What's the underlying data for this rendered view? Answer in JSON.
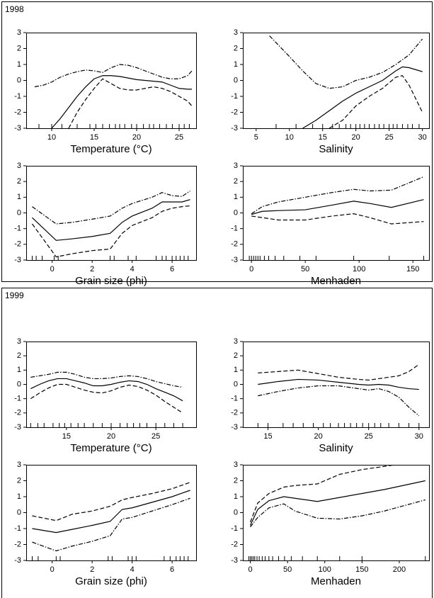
{
  "groups": [
    {
      "title": "1998"
    },
    {
      "title": "1999"
    }
  ],
  "chart_data": [
    {
      "type": "line",
      "xlabel": "Temperature (°C)",
      "xlim": [
        7,
        27
      ],
      "xticks": [
        10,
        15,
        20,
        25
      ],
      "ylim": [
        -3,
        3
      ],
      "yticks": [
        -3,
        -2,
        -1,
        0,
        1,
        2,
        3
      ],
      "x": [
        8,
        9,
        10,
        11,
        12,
        13,
        14,
        15,
        16,
        17,
        18,
        19,
        20,
        21,
        22,
        23,
        24,
        25,
        26,
        26.5
      ],
      "series": [
        {
          "color": "#000000",
          "dash": "solid",
          "values": [
            null,
            null,
            -3,
            -2.4,
            -1.7,
            -1,
            -0.4,
            0.1,
            0.3,
            0.3,
            0.25,
            0.15,
            0.05,
            0,
            -0.05,
            -0.1,
            -0.3,
            -0.5,
            -0.55,
            -0.55
          ]
        },
        {
          "color": "#000000",
          "dash": "dashdot",
          "values": [
            -0.4,
            -0.3,
            -0.1,
            0.2,
            0.4,
            0.55,
            0.65,
            0.6,
            0.5,
            0.8,
            1.0,
            0.95,
            0.8,
            0.6,
            0.4,
            0.2,
            0.1,
            0.1,
            0.3,
            0.6
          ]
        },
        {
          "color": "#000000",
          "dash": "dashed",
          "values": [
            null,
            null,
            null,
            null,
            -3,
            -2,
            -1.2,
            -0.5,
            0.1,
            -0.2,
            -0.5,
            -0.6,
            -0.6,
            -0.5,
            -0.4,
            -0.5,
            -0.7,
            -1.0,
            -1.3,
            -1.6
          ]
        }
      ],
      "rug": [
        8.5,
        10,
        11.2,
        13,
        14.5,
        15.2,
        16,
        16.8,
        17.5,
        18,
        18.6,
        19.4,
        20,
        20.8,
        21.5,
        22,
        22.7,
        23.5,
        24.2,
        25,
        25.6,
        26.2
      ]
    },
    {
      "type": "line",
      "xlabel": "Salinity",
      "xlim": [
        3,
        31
      ],
      "xticks": [
        5,
        10,
        15,
        20,
        25,
        30
      ],
      "ylim": [
        -3,
        3
      ],
      "yticks": [
        -3,
        -2,
        -1,
        0,
        1,
        2,
        3
      ],
      "x": [
        7,
        10,
        12,
        14,
        16,
        18,
        20,
        22,
        24,
        26,
        27,
        28,
        30
      ],
      "series": [
        {
          "color": "#000000",
          "dash": "solid",
          "values": [
            null,
            null,
            -3,
            -2.5,
            -1.9,
            -1.3,
            -0.8,
            -0.4,
            0,
            0.6,
            0.85,
            0.8,
            0.55
          ]
        },
        {
          "color": "#000000",
          "dash": "dashdot",
          "values": [
            2.8,
            1.5,
            0.6,
            -0.2,
            -0.5,
            -0.4,
            0,
            0.2,
            0.5,
            1.0,
            1.3,
            1.6,
            2.6
          ]
        },
        {
          "color": "#000000",
          "dash": "dashed",
          "values": [
            null,
            null,
            null,
            null,
            -3,
            -2.5,
            -1.6,
            -1,
            -0.5,
            0.2,
            0.3,
            -0.3,
            -2
          ]
        }
      ],
      "rug": [
        8,
        11,
        13.5,
        15,
        16.5,
        17.5,
        18.5,
        19.2,
        20,
        20.6,
        21.3,
        22,
        22.8,
        23.5,
        24.2,
        25,
        25.6,
        26.2,
        27,
        27.8,
        28.5,
        29.5
      ]
    },
    {
      "type": "line",
      "xlabel": "Grain size (phi)",
      "xlim": [
        -1.3,
        7.2
      ],
      "xticks": [
        0,
        2,
        4,
        6
      ],
      "ylim": [
        -3,
        3
      ],
      "yticks": [
        -3,
        -2,
        -1,
        0,
        1,
        2,
        3
      ],
      "x": [
        -1,
        0.2,
        1,
        2,
        2.9,
        3.5,
        4,
        5,
        5.5,
        6,
        6.5,
        6.9
      ],
      "series": [
        {
          "color": "#000000",
          "dash": "solid",
          "values": [
            -0.3,
            -1.75,
            -1.65,
            -1.5,
            -1.3,
            -0.6,
            -0.2,
            0.3,
            0.7,
            0.7,
            0.7,
            0.85
          ]
        },
        {
          "color": "#000000",
          "dash": "dashdot",
          "values": [
            0.4,
            -0.7,
            -0.6,
            -0.4,
            -0.2,
            0.3,
            0.6,
            1.0,
            1.3,
            1.1,
            1.05,
            1.4
          ]
        },
        {
          "color": "#000000",
          "dash": "dashed",
          "values": [
            -0.7,
            -2.8,
            -2.6,
            -2.4,
            -2.3,
            -1.3,
            -0.8,
            -0.3,
            0.1,
            0.3,
            0.4,
            0.45
          ]
        }
      ],
      "rug": [
        -1,
        -0.8,
        -0.5,
        0.1,
        0.3,
        2.9,
        3.1,
        3.8,
        4.2,
        5.2,
        5.5,
        5.7,
        6.0,
        6.2,
        6.4,
        6.6,
        6.8
      ]
    },
    {
      "type": "line",
      "xlabel": "Menhaden",
      "xlim": [
        -8,
        165
      ],
      "xticks": [
        0,
        50,
        100,
        150
      ],
      "ylim": [
        -3,
        3
      ],
      "yticks": [
        -3,
        -2,
        -1,
        0,
        1,
        2,
        3
      ],
      "x": [
        0,
        10,
        25,
        50,
        75,
        95,
        110,
        130,
        160
      ],
      "series": [
        {
          "color": "#000000",
          "dash": "solid",
          "values": [
            -0.1,
            0.1,
            0.15,
            0.2,
            0.5,
            0.75,
            0.6,
            0.35,
            0.85
          ]
        },
        {
          "color": "#000000",
          "dash": "dashdot",
          "values": [
            -0.05,
            0.4,
            0.7,
            1.0,
            1.3,
            1.5,
            1.4,
            1.45,
            2.3
          ]
        },
        {
          "color": "#000000",
          "dash": "dashed",
          "values": [
            -0.2,
            -0.3,
            -0.45,
            -0.45,
            -0.2,
            -0.05,
            -0.3,
            -0.7,
            -0.55
          ]
        }
      ],
      "rug": [
        -2,
        0,
        2,
        4,
        6,
        8,
        12,
        16,
        22,
        30,
        45,
        60,
        95,
        128,
        160
      ]
    },
    {
      "type": "line",
      "xlabel": "Temperature (°C)",
      "xlim": [
        10.5,
        29.5
      ],
      "xticks": [
        15,
        20,
        25
      ],
      "ylim": [
        -3,
        3
      ],
      "yticks": [
        -3,
        -2,
        -1,
        0,
        1,
        2,
        3
      ],
      "x": [
        11,
        12,
        13,
        14,
        15,
        16,
        17,
        18,
        19,
        20,
        21,
        22,
        23,
        24,
        25,
        26,
        27,
        28
      ],
      "series": [
        {
          "color": "#000000",
          "dash": "solid",
          "values": [
            -0.3,
            0,
            0.25,
            0.4,
            0.4,
            0.25,
            0.1,
            -0.1,
            -0.1,
            0,
            0.15,
            0.25,
            0.2,
            0,
            -0.3,
            -0.55,
            -0.8,
            -1.15
          ]
        },
        {
          "color": "#000000",
          "dash": "dashdot",
          "values": [
            0.5,
            0.6,
            0.7,
            0.85,
            0.85,
            0.7,
            0.5,
            0.4,
            0.4,
            0.45,
            0.55,
            0.6,
            0.55,
            0.4,
            0.2,
            0.05,
            -0.1,
            -0.2
          ]
        },
        {
          "color": "#000000",
          "dash": "dashed",
          "values": [
            -1,
            -0.6,
            -0.25,
            0,
            0,
            -0.2,
            -0.4,
            -0.55,
            -0.6,
            -0.45,
            -0.2,
            -0.05,
            -0.15,
            -0.4,
            -0.75,
            -1.2,
            -1.6,
            -2
          ]
        }
      ],
      "rug": [
        11,
        11.8,
        12.5,
        13.5,
        14.2,
        14.8,
        15.5,
        16.3,
        17,
        18,
        19,
        20,
        21,
        21.8,
        22.5,
        23.2,
        24,
        25,
        26,
        27,
        28
      ]
    },
    {
      "type": "line",
      "xlabel": "Salinity",
      "xlim": [
        12.5,
        31
      ],
      "xticks": [
        15,
        20,
        25,
        30
      ],
      "ylim": [
        -3,
        3
      ],
      "yticks": [
        -3,
        -2,
        -1,
        0,
        1,
        2,
        3
      ],
      "x": [
        14,
        16,
        18,
        20,
        22,
        24,
        25,
        26,
        27,
        28,
        29,
        30
      ],
      "series": [
        {
          "color": "#000000",
          "dash": "solid",
          "values": [
            0,
            0.2,
            0.35,
            0.3,
            0.15,
            0,
            -0.05,
            0,
            -0.05,
            -0.2,
            -0.3,
            -0.35
          ]
        },
        {
          "color": "#000000",
          "dash": "dashed",
          "values": [
            0.8,
            0.9,
            1.0,
            0.75,
            0.5,
            0.35,
            0.3,
            0.4,
            0.5,
            0.6,
            0.9,
            1.4
          ]
        },
        {
          "color": "#000000",
          "dash": "dashdot",
          "values": [
            -0.8,
            -0.5,
            -0.25,
            -0.1,
            -0.1,
            -0.3,
            -0.4,
            -0.3,
            -0.5,
            -0.9,
            -1.6,
            -2.2
          ]
        }
      ],
      "rug": [
        14,
        15,
        16.5,
        17.5,
        18.5,
        19.5,
        20.5,
        21.2,
        22,
        22.6,
        23.2,
        23.8,
        24.4,
        25,
        25.6,
        26.2,
        27,
        28,
        29,
        30
      ]
    },
    {
      "type": "line",
      "xlabel": "Grain size (phi)",
      "xlim": [
        -1.3,
        7.2
      ],
      "xticks": [
        0,
        2,
        4,
        6
      ],
      "ylim": [
        -3,
        3
      ],
      "yticks": [
        -3,
        -2,
        -1,
        0,
        1,
        2,
        3
      ],
      "x": [
        -1,
        0.2,
        1,
        2,
        2.9,
        3.5,
        4,
        5,
        6,
        6.9
      ],
      "series": [
        {
          "color": "#000000",
          "dash": "solid",
          "values": [
            -1,
            -1.25,
            -1.05,
            -0.8,
            -0.55,
            0.2,
            0.3,
            0.65,
            1.0,
            1.4
          ]
        },
        {
          "color": "#000000",
          "dash": "dashed",
          "values": [
            -0.2,
            -0.5,
            -0.1,
            0.1,
            0.4,
            0.8,
            0.95,
            1.2,
            1.5,
            1.9
          ]
        },
        {
          "color": "#000000",
          "dash": "dashdot",
          "values": [
            -1.85,
            -2.4,
            -2.1,
            -1.8,
            -1.45,
            -0.4,
            -0.3,
            0.1,
            0.5,
            0.9
          ]
        }
      ],
      "rug": [
        -1,
        -0.7,
        0.2,
        0.4,
        2.8,
        3.0,
        3.8,
        4.0,
        4.2,
        5.6,
        5.9,
        6.2,
        6.4,
        6.6,
        6.8
      ]
    },
    {
      "type": "line",
      "xlabel": "Menhaden",
      "xlim": [
        -10,
        240
      ],
      "xticks": [
        0,
        50,
        100,
        150,
        200
      ],
      "ylim": [
        -3,
        3
      ],
      "yticks": [
        -3,
        -2,
        -1,
        0,
        1,
        2,
        3
      ],
      "x": [
        0,
        10,
        25,
        45,
        60,
        90,
        120,
        150,
        180,
        235
      ],
      "series": [
        {
          "color": "#000000",
          "dash": "solid",
          "values": [
            -0.8,
            0.2,
            0.75,
            1.0,
            0.9,
            0.7,
            0.95,
            1.2,
            1.45,
            2.0
          ]
        },
        {
          "color": "#000000",
          "dash": "dashed",
          "values": [
            -0.6,
            0.6,
            1.2,
            1.6,
            1.7,
            1.8,
            2.4,
            2.7,
            2.9,
            3.3
          ]
        },
        {
          "color": "#000000",
          "dash": "dashdot",
          "values": [
            -0.9,
            -0.3,
            0.3,
            0.55,
            0.1,
            -0.35,
            -0.4,
            -0.2,
            0.1,
            0.8
          ]
        }
      ],
      "rug": [
        -2,
        0,
        2,
        4,
        6,
        9,
        12,
        16,
        20,
        25,
        30,
        38,
        46,
        55,
        70,
        90,
        120,
        150,
        235
      ]
    }
  ]
}
